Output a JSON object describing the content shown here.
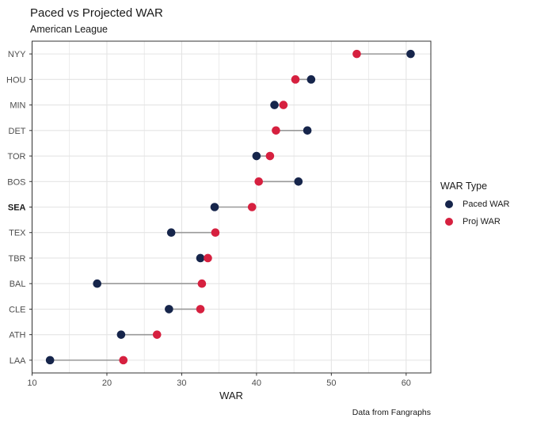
{
  "title": "Paced vs Projected WAR",
  "subtitle": "American League",
  "caption": "Data from Fangraphs",
  "legend": {
    "title": "WAR Type",
    "items": [
      {
        "label": "Paced WAR",
        "color": "#16254b"
      },
      {
        "label": "Proj WAR",
        "color": "#d6203f"
      }
    ]
  },
  "chart_data": {
    "type": "scatter",
    "subtype": "dumbbell",
    "title": "Paced vs Projected WAR",
    "subtitle": "American League",
    "xlabel": "WAR",
    "ylabel": "",
    "xlim": [
      10,
      63.3
    ],
    "xticks": [
      10,
      20,
      30,
      40,
      50,
      60
    ],
    "grid_minor_step": 5,
    "grid": true,
    "legend_position": "right",
    "categories": [
      "NYY",
      "HOU",
      "MIN",
      "DET",
      "TOR",
      "BOS",
      "SEA",
      "TEX",
      "TBR",
      "BAL",
      "CLE",
      "ATH",
      "LAA"
    ],
    "bold_categories": [
      "SEA"
    ],
    "series": [
      {
        "name": "Paced WAR",
        "color": "#16254b",
        "values": [
          60.6,
          47.3,
          42.4,
          46.8,
          40.0,
          45.6,
          34.4,
          28.6,
          32.5,
          18.7,
          28.3,
          21.9,
          12.4
        ]
      },
      {
        "name": "Proj WAR",
        "color": "#d6203f",
        "values": [
          53.4,
          45.2,
          43.6,
          42.6,
          41.8,
          40.3,
          39.4,
          34.5,
          33.5,
          32.7,
          32.5,
          26.7,
          22.2
        ]
      }
    ],
    "connector_color": "#999999",
    "panel_border_color": "#333333",
    "gridline_color": "#e4e4e4",
    "tick_color": "#333333",
    "axis_text_color": "#4d4d4d"
  }
}
